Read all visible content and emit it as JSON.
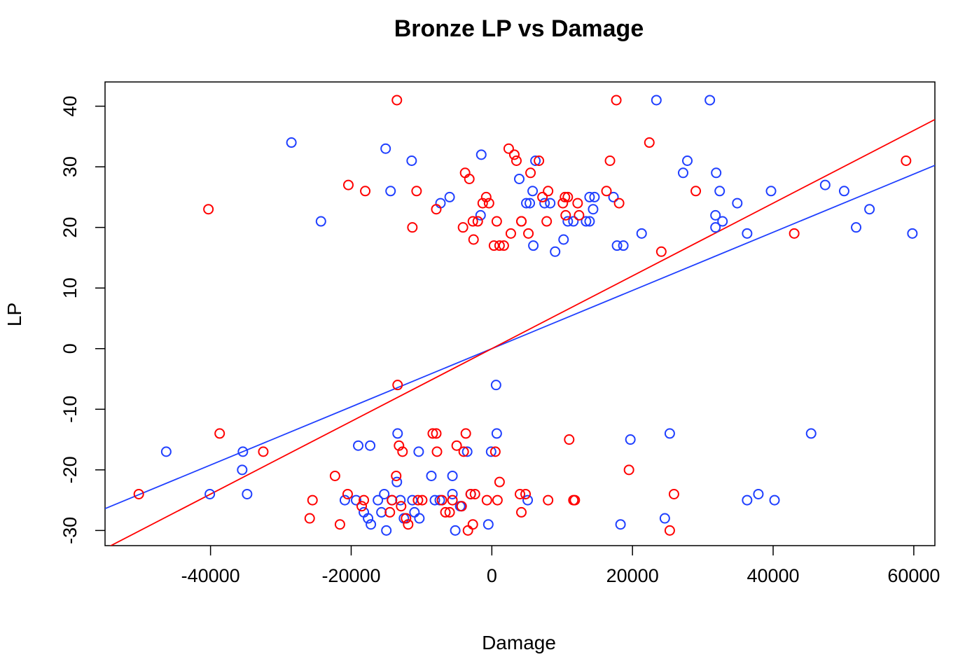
{
  "chart_data": {
    "type": "scatter",
    "title": "Bronze LP vs Damage",
    "xlabel": "Damage",
    "ylabel": "LP",
    "xlim": [
      -55000,
      63000
    ],
    "ylim": [
      -32.5,
      44
    ],
    "xticks": [
      -40000,
      -20000,
      0,
      20000,
      40000,
      60000
    ],
    "yticks": [
      -30,
      -20,
      -10,
      0,
      10,
      20,
      30,
      40
    ],
    "xtick_labels": [
      "-40000",
      "-20000",
      "0",
      "20000",
      "40000",
      "60000"
    ],
    "ytick_labels": [
      "-30",
      "-20",
      "-10",
      "0",
      "10",
      "20",
      "30",
      "40"
    ],
    "grid": false,
    "legend": "none",
    "series": [
      {
        "color": "#1f3fff",
        "marker": "open-circle",
        "fit_line": {
          "slope": 0.00048,
          "intercept": 0
        },
        "points": [
          [
            -28500,
            34
          ],
          [
            -24300,
            21
          ],
          [
            -15100,
            33
          ],
          [
            -14400,
            26
          ],
          [
            -11400,
            31
          ],
          [
            -7300,
            24
          ],
          [
            -6000,
            25
          ],
          [
            -1600,
            22
          ],
          [
            -1500,
            32
          ],
          [
            3900,
            28
          ],
          [
            4900,
            24
          ],
          [
            5400,
            24
          ],
          [
            5800,
            26
          ],
          [
            6200,
            31
          ],
          [
            7500,
            24
          ],
          [
            8300,
            24
          ],
          [
            5900,
            17
          ],
          [
            9000,
            16
          ],
          [
            10200,
            18
          ],
          [
            10800,
            21
          ],
          [
            11600,
            21
          ],
          [
            13400,
            21
          ],
          [
            13900,
            25
          ],
          [
            14400,
            23
          ],
          [
            14600,
            25
          ],
          [
            13900,
            21
          ],
          [
            17300,
            25
          ],
          [
            17800,
            17
          ],
          [
            18700,
            17
          ],
          [
            21300,
            19
          ],
          [
            23400,
            41
          ],
          [
            27200,
            29
          ],
          [
            27800,
            31
          ],
          [
            31000,
            41
          ],
          [
            31900,
            29
          ],
          [
            31800,
            22
          ],
          [
            32400,
            26
          ],
          [
            31800,
            20
          ],
          [
            32800,
            21
          ],
          [
            34900,
            24
          ],
          [
            36300,
            19
          ],
          [
            39700,
            26
          ],
          [
            47400,
            27
          ],
          [
            50100,
            26
          ],
          [
            51800,
            20
          ],
          [
            53700,
            23
          ],
          [
            59800,
            19
          ],
          [
            -46300,
            -17
          ],
          [
            -40100,
            -24
          ],
          [
            -35400,
            -17
          ],
          [
            -35500,
            -20
          ],
          [
            -34800,
            -24
          ],
          [
            -13500,
            -22
          ],
          [
            -13400,
            -14
          ],
          [
            -10400,
            -17
          ],
          [
            -10300,
            -28
          ],
          [
            -11000,
            -27
          ],
          [
            -11300,
            -25
          ],
          [
            -8600,
            -21
          ],
          [
            -8100,
            -25
          ],
          [
            -7400,
            -25
          ],
          [
            -5600,
            -24
          ],
          [
            -5600,
            -21
          ],
          [
            -5200,
            -30
          ],
          [
            -4500,
            -26
          ],
          [
            -4300,
            -26
          ],
          [
            -3500,
            -17
          ],
          [
            -3000,
            -24
          ],
          [
            -500,
            -29
          ],
          [
            -100,
            -17
          ],
          [
            600,
            -6
          ],
          [
            700,
            -14
          ],
          [
            5100,
            -25
          ],
          [
            18300,
            -29
          ],
          [
            19700,
            -15
          ],
          [
            24600,
            -28
          ],
          [
            25300,
            -14
          ],
          [
            36300,
            -25
          ],
          [
            37900,
            -24
          ],
          [
            40200,
            -25
          ],
          [
            45400,
            -14
          ],
          [
            -19000,
            -16
          ],
          [
            -17300,
            -16
          ],
          [
            -17200,
            -29
          ],
          [
            -18200,
            -27
          ],
          [
            -17600,
            -28
          ],
          [
            -20900,
            -25
          ],
          [
            -19300,
            -25
          ],
          [
            -15700,
            -27
          ],
          [
            -15300,
            -24
          ],
          [
            -15000,
            -30
          ],
          [
            -16200,
            -25
          ],
          [
            -14200,
            -25
          ],
          [
            -13000,
            -25
          ],
          [
            -12500,
            -28
          ]
        ]
      },
      {
        "color": "#ff0000",
        "marker": "open-circle",
        "fit_line": {
          "slope": 0.0006,
          "intercept": 0
        },
        "points": [
          [
            -40300,
            23
          ],
          [
            -20400,
            27
          ],
          [
            -18000,
            26
          ],
          [
            -13500,
            41
          ],
          [
            -11300,
            20
          ],
          [
            -10700,
            26
          ],
          [
            -7900,
            23
          ],
          [
            -4100,
            20
          ],
          [
            -3800,
            29
          ],
          [
            -3200,
            28
          ],
          [
            -2700,
            21
          ],
          [
            -2600,
            18
          ],
          [
            -2000,
            21
          ],
          [
            -1300,
            24
          ],
          [
            -800,
            25
          ],
          [
            -400,
            24
          ],
          [
            300,
            17
          ],
          [
            700,
            21
          ],
          [
            1100,
            17
          ],
          [
            1700,
            17
          ],
          [
            2400,
            33
          ],
          [
            2700,
            19
          ],
          [
            3200,
            32
          ],
          [
            3500,
            31
          ],
          [
            4200,
            21
          ],
          [
            4200,
            21
          ],
          [
            5200,
            19
          ],
          [
            5500,
            29
          ],
          [
            6700,
            31
          ],
          [
            7200,
            25
          ],
          [
            7800,
            21
          ],
          [
            8000,
            26
          ],
          [
            10100,
            24
          ],
          [
            10400,
            25
          ],
          [
            10500,
            22
          ],
          [
            10800,
            25
          ],
          [
            12400,
            22
          ],
          [
            12200,
            24
          ],
          [
            16300,
            26
          ],
          [
            16800,
            31
          ],
          [
            17700,
            41
          ],
          [
            18100,
            24
          ],
          [
            22400,
            34
          ],
          [
            24100,
            16
          ],
          [
            29000,
            26
          ],
          [
            43000,
            19
          ],
          [
            58900,
            31
          ],
          [
            -50200,
            -24
          ],
          [
            -38700,
            -14
          ],
          [
            -32500,
            -17
          ],
          [
            -25500,
            -25
          ],
          [
            -25900,
            -28
          ],
          [
            -22300,
            -21
          ],
          [
            -21600,
            -29
          ],
          [
            -20500,
            -24
          ],
          [
            -18500,
            -26
          ],
          [
            -18200,
            -25
          ],
          [
            -14500,
            -27
          ],
          [
            -14200,
            -25
          ],
          [
            -13600,
            -21
          ],
          [
            -13400,
            -6
          ],
          [
            -13200,
            -16
          ],
          [
            -12700,
            -17
          ],
          [
            -12200,
            -28
          ],
          [
            -11900,
            -29
          ],
          [
            -12900,
            -26
          ],
          [
            -10500,
            -25
          ],
          [
            -9900,
            -25
          ],
          [
            -8400,
            -14
          ],
          [
            -7900,
            -14
          ],
          [
            -7800,
            -17
          ],
          [
            -7100,
            -25
          ],
          [
            -6600,
            -27
          ],
          [
            -6000,
            -27
          ],
          [
            -5600,
            -25
          ],
          [
            -5000,
            -16
          ],
          [
            -4300,
            -26
          ],
          [
            -4000,
            -17
          ],
          [
            -3700,
            -14
          ],
          [
            -3400,
            -30
          ],
          [
            -3000,
            -24
          ],
          [
            -2700,
            -29
          ],
          [
            -2400,
            -24
          ],
          [
            -700,
            -25
          ],
          [
            500,
            -17
          ],
          [
            800,
            -25
          ],
          [
            1100,
            -22
          ],
          [
            4000,
            -24
          ],
          [
            4200,
            -27
          ],
          [
            4800,
            -24
          ],
          [
            8000,
            -25
          ],
          [
            11000,
            -15
          ],
          [
            11600,
            -25
          ],
          [
            11800,
            -25
          ],
          [
            19500,
            -20
          ],
          [
            25300,
            -30
          ],
          [
            25900,
            -24
          ]
        ]
      }
    ]
  }
}
